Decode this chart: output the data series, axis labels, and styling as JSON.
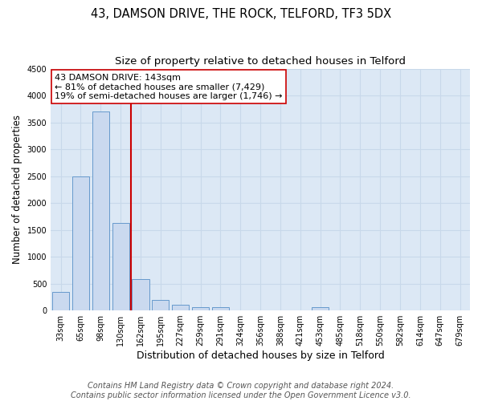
{
  "title": "43, DAMSON DRIVE, THE ROCK, TELFORD, TF3 5DX",
  "subtitle": "Size of property relative to detached houses in Telford",
  "xlabel": "Distribution of detached houses by size in Telford",
  "ylabel": "Number of detached properties",
  "categories": [
    "33sqm",
    "65sqm",
    "98sqm",
    "130sqm",
    "162sqm",
    "195sqm",
    "227sqm",
    "259sqm",
    "291sqm",
    "324sqm",
    "356sqm",
    "388sqm",
    "421sqm",
    "453sqm",
    "485sqm",
    "518sqm",
    "550sqm",
    "582sqm",
    "614sqm",
    "647sqm",
    "679sqm"
  ],
  "values": [
    350,
    2500,
    3700,
    1630,
    580,
    200,
    100,
    60,
    55,
    0,
    0,
    0,
    0,
    60,
    0,
    0,
    0,
    0,
    0,
    0,
    0
  ],
  "bar_color": "#cad9ef",
  "bar_edgecolor": "#6699cc",
  "vline_index": 3,
  "vline_color": "#cc0000",
  "annotation_text": "43 DAMSON DRIVE: 143sqm\n← 81% of detached houses are smaller (7,429)\n19% of semi-detached houses are larger (1,746) →",
  "annotation_boxcolor": "white",
  "annotation_edgecolor": "#cc0000",
  "ylim": [
    0,
    4500
  ],
  "yticks": [
    0,
    500,
    1000,
    1500,
    2000,
    2500,
    3000,
    3500,
    4000,
    4500
  ],
  "grid_color": "#c8d8ea",
  "background_color": "#dce8f5",
  "footer": "Contains HM Land Registry data © Crown copyright and database right 2024.\nContains public sector information licensed under the Open Government Licence v3.0.",
  "title_fontsize": 10.5,
  "subtitle_fontsize": 9.5,
  "ylabel_fontsize": 8.5,
  "xlabel_fontsize": 9,
  "tick_fontsize": 7,
  "annotation_fontsize": 8,
  "footer_fontsize": 7
}
